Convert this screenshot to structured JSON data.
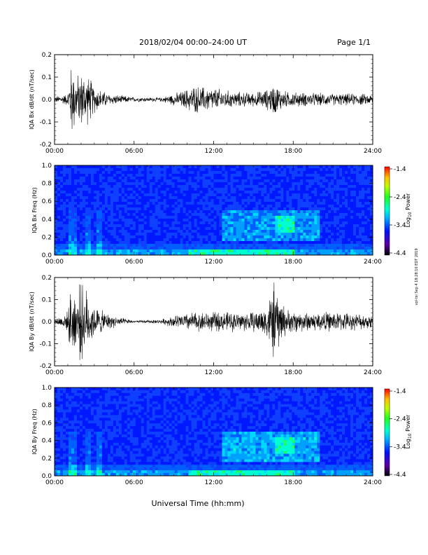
{
  "header": {
    "title": "2018/02/04  00:00–24:00 UT",
    "page": "Page 1/1"
  },
  "footer": {
    "xlabel": "Universal Time (hh:mm)"
  },
  "side_note": "vpl-tsi Sep 4 18:28:10 EDT 2019",
  "colorbar": {
    "ticks": [
      "-1.4",
      "-2.4",
      "-3.4",
      "-4.4"
    ],
    "label_main": "Log",
    "label_sub": "10",
    "label_tail": " Power"
  },
  "chart_data": [
    {
      "type": "line",
      "ylabel": "IQA Bx dB/dt (nT/sec)",
      "xlim": [
        0,
        24
      ],
      "ylim": [
        -0.2,
        0.2
      ],
      "xticks": [
        "00:00",
        "06:00",
        "12:00",
        "18:00",
        "24:00"
      ],
      "yticks": [
        "0.2",
        "0.1",
        "0.0",
        "-0.1",
        "-0.2"
      ],
      "series": [
        {
          "x": [
            0,
            1.0,
            1.3,
            1.6,
            2.0,
            2.6,
            3.0,
            4.0,
            6.0,
            8.0,
            9.5,
            10.5,
            12.0,
            13.5,
            15.0,
            16.0,
            16.5,
            17.5,
            19.0,
            21.0,
            23.0,
            24.0
          ],
          "amplitude": [
            0.015,
            0.03,
            0.2,
            0.12,
            0.14,
            0.12,
            0.07,
            0.03,
            0.012,
            0.01,
            0.04,
            0.07,
            0.06,
            0.04,
            0.035,
            0.05,
            0.08,
            0.04,
            0.035,
            0.03,
            0.03,
            0.025
          ]
        }
      ]
    },
    {
      "type": "heatmap",
      "ylabel": "IQA Bx Freq (Hz)",
      "xlim": [
        0,
        24
      ],
      "ylim": [
        0,
        1.0
      ],
      "xticks": [
        "00:00",
        "06:00",
        "12:00",
        "18:00",
        "24:00"
      ],
      "yticks": [
        "1.0",
        "0.8",
        "0.6",
        "0.4",
        "0.2",
        "0.0"
      ],
      "zlim": [
        -4.4,
        -1.4
      ]
    },
    {
      "type": "line",
      "ylabel": "IQA By dB/dt (nT/sec)",
      "xlim": [
        0,
        24
      ],
      "ylim": [
        -0.2,
        0.2
      ],
      "xticks": [
        "00:00",
        "06:00",
        "12:00",
        "18:00",
        "24:00"
      ],
      "yticks": [
        "0.2",
        "0.1",
        "0.0",
        "-0.1",
        "-0.2"
      ],
      "series": [
        {
          "x": [
            0,
            1.0,
            1.3,
            1.6,
            2.0,
            2.6,
            3.0,
            4.0,
            5.5,
            6.0,
            8.0,
            9.5,
            10.5,
            12.0,
            13.5,
            15.0,
            16.0,
            16.5,
            17.5,
            19.0,
            21.0,
            23.0,
            24.0
          ],
          "amplitude": [
            0.015,
            0.05,
            0.2,
            0.15,
            0.2,
            0.14,
            0.08,
            0.04,
            0.012,
            0.006,
            0.01,
            0.04,
            0.05,
            0.05,
            0.05,
            0.05,
            0.08,
            0.2,
            0.06,
            0.05,
            0.05,
            0.04,
            0.035
          ]
        }
      ]
    },
    {
      "type": "heatmap",
      "ylabel": "IQA By Freq (Hz)",
      "xlim": [
        0,
        24
      ],
      "ylim": [
        0,
        1.0
      ],
      "xticks": [
        "00:00",
        "06:00",
        "12:00",
        "18:00",
        "24:00"
      ],
      "yticks": [
        "1.0",
        "0.8",
        "0.6",
        "0.4",
        "0.2",
        "0.0"
      ],
      "zlim": [
        -4.4,
        -1.4
      ]
    }
  ]
}
